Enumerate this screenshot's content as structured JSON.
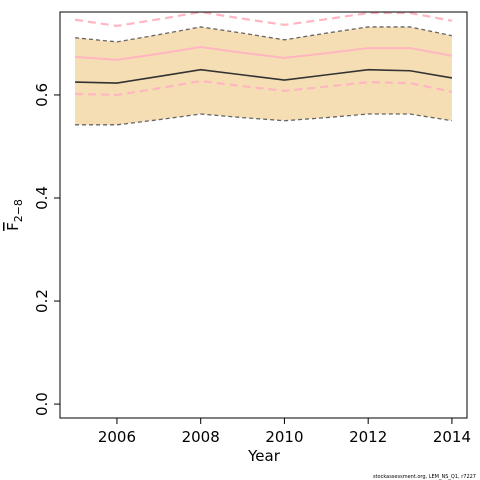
{
  "chart_data": {
    "type": "line",
    "xlabel": "Year",
    "ylabel": "F",
    "ylabel_sub": "2−8",
    "footnote": "stockassessment.org, LEM_NS_Q1, r7227",
    "x": [
      2005,
      2006,
      2007,
      2008,
      2009,
      2010,
      2011,
      2012,
      2013,
      2014
    ],
    "xlim": [
      2004.64,
      2014.36
    ],
    "xticks": [
      2006,
      2008,
      2010,
      2012,
      2014
    ],
    "ylim": [
      -0.027,
      0.761
    ],
    "yticks": [
      {
        "value": 0,
        "label": "0.0"
      },
      0.2,
      0.4,
      0.6
    ],
    "band_color": "#f5deb3",
    "series": [
      {
        "color": "#333333",
        "dash": "none",
        "width": 1.6,
        "values": [
          0.625,
          0.623,
          0.636,
          0.649,
          0.639,
          0.629,
          0.639,
          0.649,
          0.647,
          0.633
        ]
      },
      {
        "color": "#666666",
        "dash": "4,3",
        "width": 1.3,
        "band": "upper",
        "values": [
          0.711,
          0.703,
          0.717,
          0.732,
          0.72,
          0.707,
          0.72,
          0.732,
          0.732,
          0.715
        ]
      },
      {
        "color": "#666666",
        "dash": "4,3",
        "width": 1.3,
        "band": "lower",
        "values": [
          0.542,
          0.542,
          0.552,
          0.563,
          0.556,
          0.55,
          0.556,
          0.563,
          0.563,
          0.55
        ]
      },
      {
        "color": "#ffb6c1",
        "dash": "none",
        "width": 2,
        "values": [
          0.674,
          0.668,
          0.68,
          0.693,
          0.682,
          0.672,
          0.681,
          0.691,
          0.691,
          0.676
        ]
      },
      {
        "color": "#ffb6c1",
        "dash": "8,5",
        "width": 2.2,
        "values": [
          0.746,
          0.734,
          0.747,
          0.761,
          0.748,
          0.736,
          0.747,
          0.759,
          0.759,
          0.744
        ]
      },
      {
        "color": "#ffb6c1",
        "dash": "8,5",
        "width": 2.2,
        "values": [
          0.602,
          0.6,
          0.613,
          0.627,
          0.617,
          0.608,
          0.616,
          0.625,
          0.623,
          0.606
        ]
      }
    ]
  }
}
